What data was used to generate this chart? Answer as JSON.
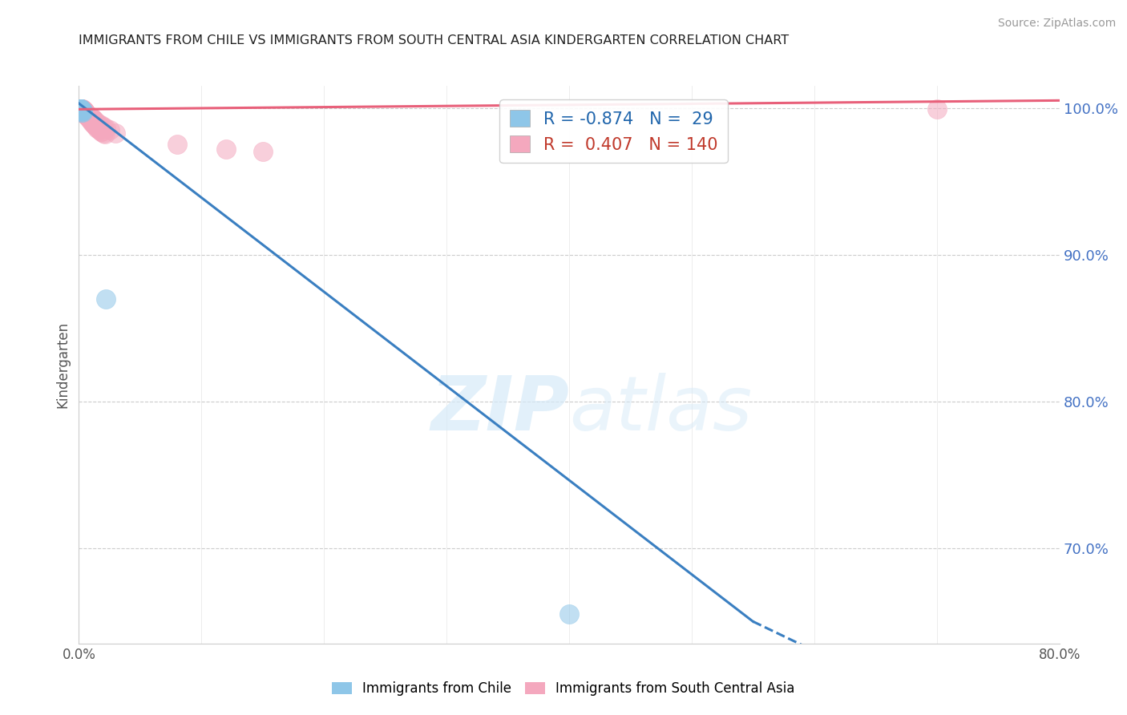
{
  "title": "IMMIGRANTS FROM CHILE VS IMMIGRANTS FROM SOUTH CENTRAL ASIA KINDERGARTEN CORRELATION CHART",
  "source": "Source: ZipAtlas.com",
  "ylabel": "Kindergarten",
  "xlim": [
    0.0,
    0.8
  ],
  "ylim": [
    0.635,
    1.015
  ],
  "yticks_right": [
    0.7,
    0.8,
    0.9,
    1.0
  ],
  "yticks_right_labels": [
    "70.0%",
    "80.0%",
    "90.0%",
    "100.0%"
  ],
  "blue_R": -0.874,
  "blue_N": 29,
  "pink_R": 0.407,
  "pink_N": 140,
  "blue_color": "#8ec6e8",
  "pink_color": "#f4a8be",
  "blue_line_color": "#3a7fc1",
  "pink_line_color": "#e8607a",
  "watermark_color": "#d6eaf8",
  "background_color": "#ffffff",
  "grid_color": "#cccccc",
  "blue_scatter_x": [
    0.001,
    0.002,
    0.002,
    0.001,
    0.003,
    0.001,
    0.002,
    0.001,
    0.002,
    0.001,
    0.003,
    0.002,
    0.001,
    0.001,
    0.002,
    0.001,
    0.002,
    0.001,
    0.001,
    0.002,
    0.003,
    0.001,
    0.002,
    0.001,
    0.022,
    0.002,
    0.001,
    0.001,
    0.4
  ],
  "blue_scatter_y": [
    0.998,
    0.999,
    0.997,
    0.999,
    0.998,
    0.999,
    0.998,
    0.999,
    0.998,
    0.999,
    0.997,
    0.999,
    0.999,
    0.999,
    0.999,
    0.999,
    0.999,
    0.999,
    0.999,
    0.999,
    0.998,
    0.999,
    0.999,
    0.999,
    0.87,
    0.999,
    0.999,
    0.999,
    0.655
  ],
  "pink_scatter_x": [
    0.001,
    0.002,
    0.003,
    0.001,
    0.002,
    0.001,
    0.002,
    0.001,
    0.002,
    0.001,
    0.002,
    0.001,
    0.002,
    0.001,
    0.002,
    0.001,
    0.002,
    0.001,
    0.002,
    0.001,
    0.003,
    0.002,
    0.003,
    0.002,
    0.003,
    0.001,
    0.002,
    0.003,
    0.002,
    0.001,
    0.004,
    0.005,
    0.004,
    0.005,
    0.004,
    0.003,
    0.004,
    0.003,
    0.004,
    0.005,
    0.003,
    0.005,
    0.005,
    0.006,
    0.006,
    0.002,
    0.003,
    0.001,
    0.003,
    0.002,
    0.007,
    0.008,
    0.007,
    0.009,
    0.01,
    0.006,
    0.007,
    0.008,
    0.009,
    0.01,
    0.001,
    0.002,
    0.003,
    0.001,
    0.002,
    0.001,
    0.002,
    0.001,
    0.002,
    0.001,
    0.011,
    0.012,
    0.011,
    0.012,
    0.013,
    0.011,
    0.012,
    0.013,
    0.014,
    0.011,
    0.004,
    0.004,
    0.005,
    0.005,
    0.006,
    0.006,
    0.007,
    0.007,
    0.008,
    0.008,
    0.015,
    0.016,
    0.018,
    0.02,
    0.022,
    0.025,
    0.03,
    0.08,
    0.12,
    0.15,
    0.001,
    0.002,
    0.003,
    0.001,
    0.002,
    0.002,
    0.001,
    0.001,
    0.002,
    0.001,
    0.009,
    0.009,
    0.01,
    0.01,
    0.011,
    0.011,
    0.012,
    0.012,
    0.013,
    0.013,
    0.001,
    0.002,
    0.001,
    0.002,
    0.001,
    0.002,
    0.001,
    0.002,
    0.001,
    0.7,
    0.014,
    0.014,
    0.015,
    0.015,
    0.016,
    0.017,
    0.018,
    0.019,
    0.02,
    0.021
  ],
  "pink_scatter_y": [
    0.999,
    0.999,
    0.998,
    0.999,
    0.999,
    0.999,
    0.999,
    0.999,
    0.999,
    0.999,
    0.999,
    0.999,
    0.999,
    0.999,
    0.999,
    0.999,
    0.999,
    0.999,
    0.999,
    0.999,
    0.998,
    0.999,
    0.998,
    0.999,
    0.998,
    0.999,
    0.999,
    0.998,
    0.999,
    0.999,
    0.998,
    0.997,
    0.998,
    0.997,
    0.997,
    0.998,
    0.997,
    0.998,
    0.997,
    0.996,
    0.998,
    0.996,
    0.996,
    0.995,
    0.995,
    0.999,
    0.998,
    0.999,
    0.998,
    0.999,
    0.995,
    0.994,
    0.995,
    0.994,
    0.993,
    0.996,
    0.995,
    0.994,
    0.993,
    0.993,
    0.999,
    0.999,
    0.999,
    0.999,
    0.999,
    0.999,
    0.999,
    0.999,
    0.999,
    0.999,
    0.992,
    0.991,
    0.992,
    0.991,
    0.99,
    0.993,
    0.992,
    0.991,
    0.99,
    0.992,
    0.998,
    0.997,
    0.997,
    0.996,
    0.996,
    0.995,
    0.995,
    0.994,
    0.994,
    0.993,
    0.99,
    0.989,
    0.988,
    0.987,
    0.986,
    0.985,
    0.983,
    0.975,
    0.972,
    0.97,
    0.999,
    0.999,
    0.999,
    0.999,
    0.999,
    0.999,
    0.999,
    0.999,
    0.999,
    0.999,
    0.993,
    0.992,
    0.992,
    0.991,
    0.991,
    0.99,
    0.99,
    0.989,
    0.989,
    0.988,
    0.999,
    0.999,
    0.999,
    0.999,
    0.999,
    0.999,
    0.999,
    0.999,
    0.999,
    0.999,
    0.988,
    0.987,
    0.987,
    0.986,
    0.986,
    0.985,
    0.984,
    0.984,
    0.983,
    0.982
  ]
}
